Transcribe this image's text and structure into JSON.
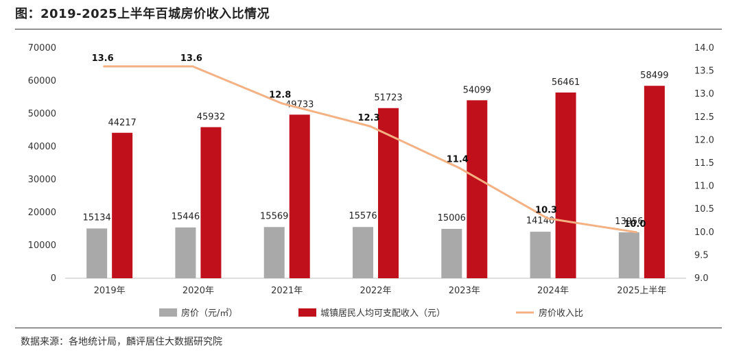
{
  "title": "图：2019-2025上半年百城房价收入比情况",
  "source": "数据来源：各地统计局，麟评居住大数据研究院",
  "colors": {
    "price": "#a9a9a9",
    "income": "#c0101c",
    "ratio": "#f4b183"
  },
  "chart_data": {
    "type": "bar",
    "categories": [
      "2019年",
      "2020年",
      "2021年",
      "2022年",
      "2023年",
      "2024年",
      "2025上半年"
    ],
    "series": [
      {
        "name": "房价（元/㎡）",
        "type": "bar",
        "axis": "left",
        "values": [
          15134,
          15446,
          15569,
          15576,
          15006,
          14140,
          13956
        ]
      },
      {
        "name": "城镇居民人均可支配收入（元）",
        "type": "bar",
        "axis": "left",
        "values": [
          44217,
          45932,
          49733,
          51723,
          54099,
          56461,
          58499
        ]
      },
      {
        "name": "房价收入比",
        "type": "line",
        "axis": "right",
        "values": [
          13.6,
          13.6,
          12.8,
          12.3,
          11.4,
          10.3,
          10.0
        ],
        "labels": [
          "13.6",
          "13.6",
          "12.8",
          "12.3",
          "11.4",
          "10.3",
          "10.0"
        ]
      }
    ],
    "ylim_left": [
      0,
      70000
    ],
    "yticks_left": [
      "0",
      "10000",
      "20000",
      "30000",
      "40000",
      "50000",
      "60000",
      "70000"
    ],
    "ylim_right": [
      9.0,
      14.0
    ],
    "yticks_right": [
      "9.0",
      "9.5",
      "10.0",
      "10.5",
      "11.0",
      "11.5",
      "12.0",
      "12.5",
      "13.0",
      "13.5",
      "14.0"
    ],
    "legend": [
      "房价（元/㎡）",
      "城镇居民人均可支配收入（元）",
      "房价收入比"
    ],
    "legend_position": "bottom"
  }
}
